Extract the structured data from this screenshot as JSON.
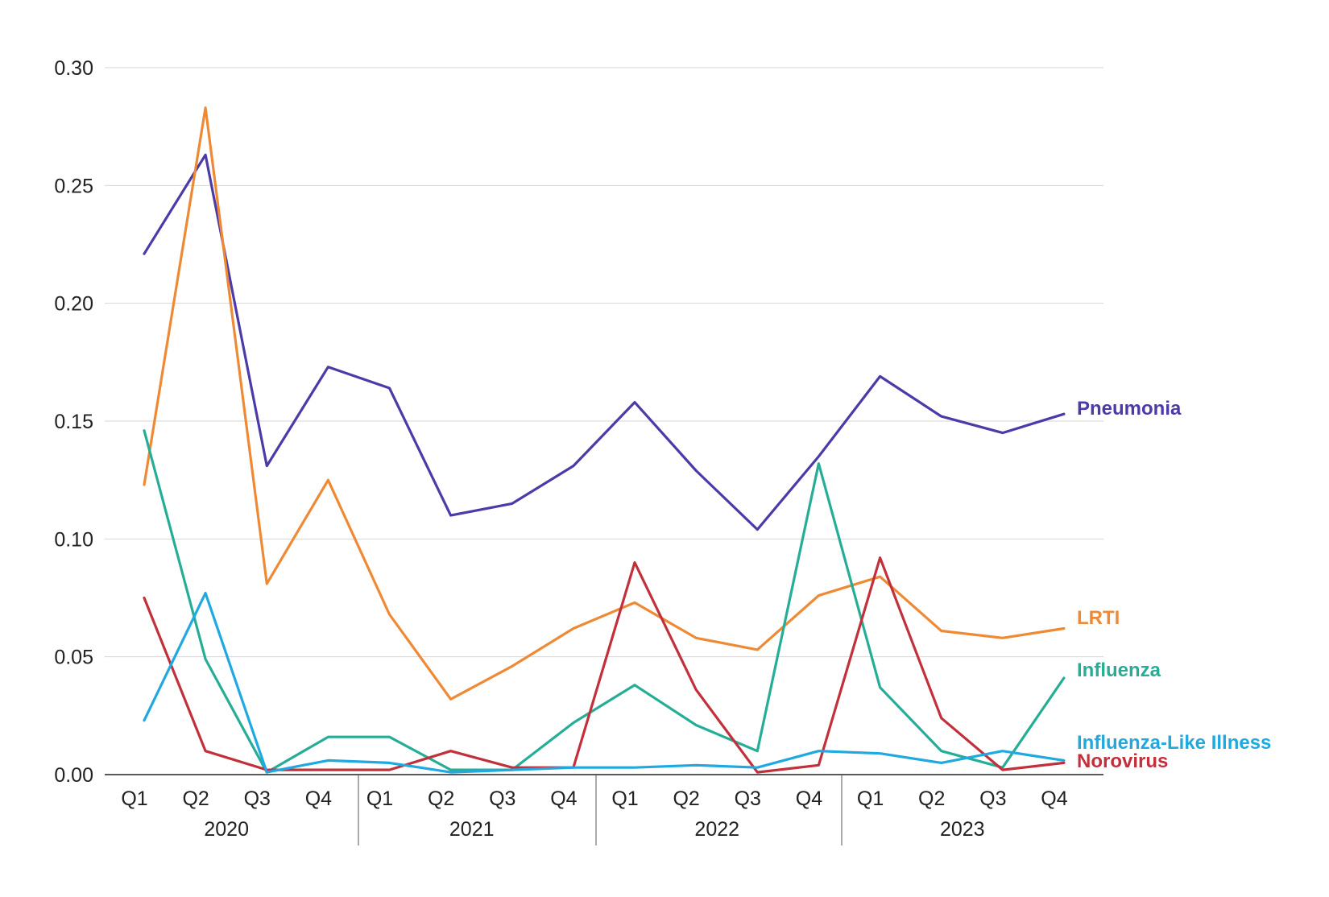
{
  "chart_data": {
    "type": "line",
    "title": "",
    "xlabel": "",
    "ylabel": "",
    "ylim": [
      0,
      0.3
    ],
    "yticks": [
      "0.00",
      "0.05",
      "0.10",
      "0.15",
      "0.20",
      "0.25",
      "0.30"
    ],
    "grid": true,
    "legend": "direct labels at line ends (right)",
    "categories": [
      "Q1",
      "Q2",
      "Q3",
      "Q4",
      "Q1",
      "Q2",
      "Q3",
      "Q4",
      "Q1",
      "Q2",
      "Q3",
      "Q4",
      "Q1",
      "Q2",
      "Q3",
      "Q4"
    ],
    "groups": [
      {
        "label": "2020",
        "span": 4
      },
      {
        "label": "2021",
        "span": 4
      },
      {
        "label": "2022",
        "span": 4
      },
      {
        "label": "2023",
        "span": 4
      }
    ],
    "series": [
      {
        "name": "Pneumonia",
        "color": "#4b3aa8",
        "values": [
          0.221,
          0.263,
          0.131,
          0.173,
          0.164,
          0.11,
          0.115,
          0.131,
          0.158,
          0.129,
          0.104,
          0.135,
          0.169,
          0.152,
          0.145,
          0.153
        ]
      },
      {
        "name": "LRTI",
        "color": "#ee8a35",
        "values": [
          0.123,
          0.283,
          0.081,
          0.125,
          0.068,
          0.032,
          0.046,
          0.062,
          0.073,
          0.058,
          0.053,
          0.076,
          0.084,
          0.061,
          0.058,
          0.062
        ]
      },
      {
        "name": "Influenza",
        "color": "#26ad97",
        "values": [
          0.146,
          0.049,
          0.001,
          0.016,
          0.016,
          0.002,
          0.002,
          0.022,
          0.038,
          0.021,
          0.01,
          0.132,
          0.037,
          0.01,
          0.003,
          0.041
        ]
      },
      {
        "name": "Influenza-Like Illness",
        "color": "#1fa9e0",
        "values": [
          0.023,
          0.077,
          0.001,
          0.006,
          0.005,
          0.001,
          0.002,
          0.003,
          0.003,
          0.004,
          0.003,
          0.01,
          0.009,
          0.005,
          0.01,
          0.006
        ]
      },
      {
        "name": "Norovirus",
        "color": "#c1303b",
        "values": [
          0.075,
          0.01,
          0.002,
          0.002,
          0.002,
          0.01,
          0.003,
          0.003,
          0.09,
          0.036,
          0.001,
          0.004,
          0.092,
          0.024,
          0.002,
          0.005
        ]
      }
    ]
  }
}
